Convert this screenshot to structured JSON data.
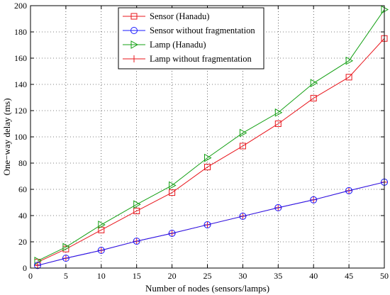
{
  "chart_data": {
    "type": "line",
    "xlabel": "Number of nodes (sensors/lamps)",
    "ylabel": "One−way delay (ms)",
    "xlim": [
      0,
      50
    ],
    "ylim": [
      0,
      200
    ],
    "xticks": [
      0,
      5,
      10,
      15,
      20,
      25,
      30,
      35,
      40,
      45,
      50
    ],
    "yticks": [
      0,
      20,
      40,
      60,
      80,
      100,
      120,
      140,
      160,
      180,
      200
    ],
    "grid": "dotted",
    "legend_position": "top-right",
    "series": [
      {
        "name": "Sensor (Hanadu)",
        "color": "#e8141b",
        "marker": "square",
        "x": [
          1,
          5,
          10,
          15,
          20,
          25,
          30,
          35,
          40,
          45,
          50
        ],
        "y": [
          4.5,
          14.5,
          29,
          43.5,
          57.5,
          77,
          93,
          110,
          129.5,
          145.5,
          175
        ]
      },
      {
        "name": "Sensor without fragmentation",
        "color": "#1a1aff",
        "marker": "circle",
        "x": [
          1,
          5,
          10,
          15,
          20,
          25,
          30,
          35,
          40,
          45,
          50
        ],
        "y": [
          2,
          7.5,
          13.5,
          20.5,
          26.5,
          33,
          39.5,
          46,
          52,
          59,
          65.5
        ]
      },
      {
        "name": "Lamp (Hanadu)",
        "color": "#14a014",
        "marker": "triangle-right",
        "x": [
          1,
          5,
          10,
          15,
          20,
          25,
          30,
          35,
          40,
          45,
          50
        ],
        "y": [
          5.5,
          16,
          33,
          48.5,
          63,
          84,
          103,
          118.5,
          141,
          158,
          197
        ]
      },
      {
        "name": "Lamp without fragmentation",
        "color": "#e8141b",
        "marker": "plus",
        "x": [
          1,
          5,
          10,
          15,
          20,
          25,
          30,
          35,
          40,
          45,
          50
        ],
        "y": [
          2,
          7.5,
          13.5,
          20.5,
          26.5,
          33,
          39.5,
          46,
          52,
          59,
          65.5
        ]
      }
    ]
  }
}
